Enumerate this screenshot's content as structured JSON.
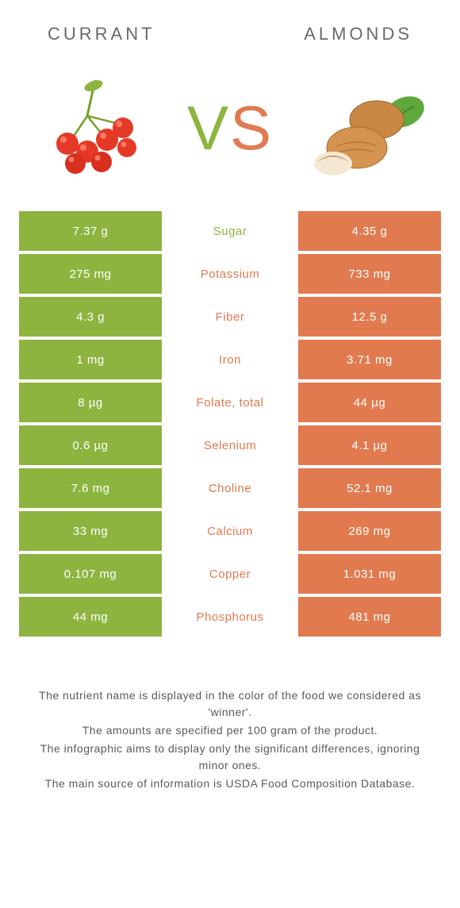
{
  "colors": {
    "left": "#8cb43f",
    "right": "#e27a50",
    "bg": "#ffffff",
    "text": "#5a5a5a"
  },
  "titles": {
    "left": "CURRANT",
    "right": "ALMONDS"
  },
  "vs": {
    "v": "V",
    "s": "S"
  },
  "rows": [
    {
      "left": "7.37 g",
      "label": "Sugar",
      "right": "4.35 g",
      "winner": "left"
    },
    {
      "left": "275 mg",
      "label": "Potassium",
      "right": "733 mg",
      "winner": "right"
    },
    {
      "left": "4.3 g",
      "label": "Fiber",
      "right": "12.5 g",
      "winner": "right"
    },
    {
      "left": "1 mg",
      "label": "Iron",
      "right": "3.71 mg",
      "winner": "right"
    },
    {
      "left": "8 µg",
      "label": "Folate, total",
      "right": "44 µg",
      "winner": "right"
    },
    {
      "left": "0.6 µg",
      "label": "Selenium",
      "right": "4.1 µg",
      "winner": "right"
    },
    {
      "left": "7.6 mg",
      "label": "Choline",
      "right": "52.1 mg",
      "winner": "right"
    },
    {
      "left": "33 mg",
      "label": "Calcium",
      "right": "269 mg",
      "winner": "right"
    },
    {
      "left": "0.107 mg",
      "label": "Copper",
      "right": "1.031 mg",
      "winner": "right"
    },
    {
      "left": "44 mg",
      "label": "Phosphorus",
      "right": "481 mg",
      "winner": "right"
    }
  ],
  "footer": {
    "l1": "The nutrient name is displayed in the color of the food we considered as 'winner'.",
    "l2": "The amounts are specified per 100 gram of the product.",
    "l3": "The infographic aims to display only the significant differences, ignoring minor ones.",
    "l4": "The main source of information is USDA Food Composition Database."
  }
}
